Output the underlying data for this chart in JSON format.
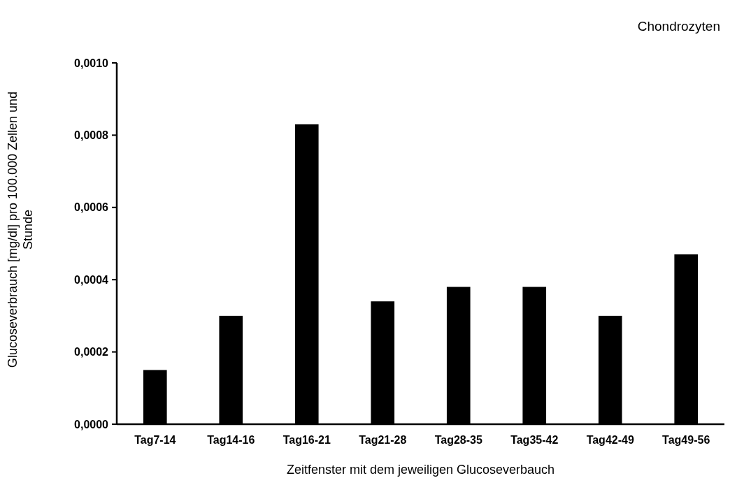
{
  "chart_data": {
    "type": "bar",
    "title": "Chondrozyten",
    "xlabel": "Zeitfenster mit dem jeweiligen Glucoseverbauch",
    "ylabel": "Glucoseverbrauch [mg/dl] pro 100.000 Zellen und Stunde",
    "categories": [
      "Tag7-14",
      "Tag14-16",
      "Tag16-21",
      "Tag21-28",
      "Tag28-35",
      "Tag35-42",
      "Tag42-49",
      "Tag49-56"
    ],
    "values": [
      0.00015,
      0.0003,
      0.00083,
      0.00034,
      0.00038,
      0.00038,
      0.0003,
      0.00047
    ],
    "color": "#000000",
    "ylim": [
      0,
      0.001
    ],
    "yticks": [
      {
        "value": 0,
        "label": "0,0000"
      },
      {
        "value": 0.0002,
        "label": "0,0002"
      },
      {
        "value": 0.0004,
        "label": "0,0004"
      },
      {
        "value": 0.0006,
        "label": "0,0006"
      },
      {
        "value": 0.0008,
        "label": "0,0008"
      },
      {
        "value": 0.001,
        "label": "0,0010"
      }
    ],
    "grid": false
  }
}
